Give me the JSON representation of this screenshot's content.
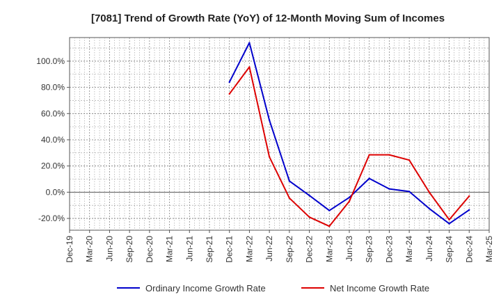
{
  "chart_data": {
    "type": "line",
    "title": "[7081]  Trend of Growth Rate (YoY) of 12-Month Moving Sum of Incomes",
    "xlabel": "",
    "ylabel": "",
    "x": [
      "Dec-19",
      "Mar-20",
      "Jun-20",
      "Sep-20",
      "Dec-20",
      "Mar-21",
      "Jun-21",
      "Sep-21",
      "Dec-21",
      "Mar-22",
      "Jun-22",
      "Sep-22",
      "Dec-22",
      "Mar-23",
      "Jun-23",
      "Sep-23",
      "Dec-23",
      "Mar-24",
      "Jun-24",
      "Sep-24",
      "Dec-24",
      "Mar-25"
    ],
    "yticks": [
      -20,
      0,
      20,
      40,
      60,
      80,
      100
    ],
    "ytick_labels": [
      "-20.0%",
      "0.0%",
      "20.0%",
      "40.0%",
      "60.0%",
      "80.0%",
      "100.0%"
    ],
    "ylim": [
      -29,
      118
    ],
    "grid": true,
    "legend_position": "bottom",
    "series": [
      {
        "name": "Ordinary Income Growth Rate",
        "color": "#0000cc",
        "values": [
          null,
          null,
          null,
          null,
          null,
          null,
          null,
          null,
          84.0,
          114.0,
          55.0,
          8.5,
          -2.5,
          -14.0,
          -4.0,
          10.5,
          2.5,
          0.5,
          -12.5,
          -24.0,
          -13.5,
          null
        ]
      },
      {
        "name": "Net Income Growth Rate",
        "color": "#dd0000",
        "values": [
          null,
          null,
          null,
          null,
          null,
          null,
          null,
          null,
          75.0,
          95.5,
          27.0,
          -4.5,
          -19.0,
          -26.0,
          -7.0,
          28.5,
          28.5,
          24.5,
          0.0,
          -21.0,
          -3.0,
          null
        ]
      }
    ]
  }
}
